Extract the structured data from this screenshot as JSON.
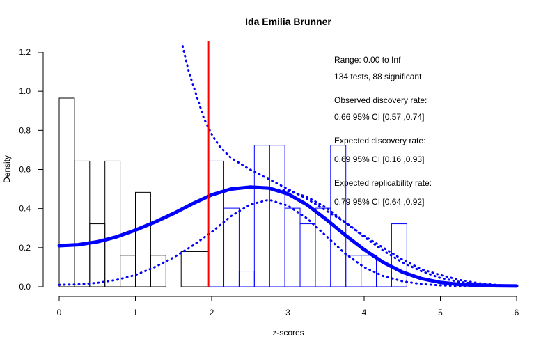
{
  "chart_data": {
    "type": "histogram",
    "title": "Ida Emilia Brunner",
    "xlabel": "z-scores",
    "ylabel": "Density",
    "xlim": [
      0,
      6
    ],
    "ylim": [
      0,
      1.2
    ],
    "x_ticks": [
      "0",
      "1",
      "2",
      "3",
      "4",
      "5",
      "6"
    ],
    "y_ticks": [
      "0.0",
      "0.2",
      "0.4",
      "0.6",
      "0.8",
      "1.0",
      "1.2"
    ],
    "threshold": {
      "x": 1.96,
      "color": "#ff0000"
    },
    "bin_width": 0.2,
    "bars_below_threshold": [
      {
        "x0": 0.0,
        "value": 0.965
      },
      {
        "x0": 0.2,
        "value": 0.643
      },
      {
        "x0": 0.4,
        "value": 0.322
      },
      {
        "x0": 0.6,
        "value": 0.643
      },
      {
        "x0": 0.8,
        "value": 0.161
      },
      {
        "x0": 1.0,
        "value": 0.483
      },
      {
        "x0": 1.2,
        "value": 0.161
      },
      {
        "x0": 1.6,
        "value": 0.18,
        "width": 0.36
      }
    ],
    "bars_above_threshold": [
      {
        "x0": 1.96,
        "value": 0.643
      },
      {
        "x0": 2.16,
        "value": 0.402
      },
      {
        "x0": 2.36,
        "value": 0.08
      },
      {
        "x0": 2.56,
        "value": 0.724
      },
      {
        "x0": 2.76,
        "value": 0.724
      },
      {
        "x0": 2.96,
        "value": 0.402
      },
      {
        "x0": 3.16,
        "value": 0.322
      },
      {
        "x0": 3.36,
        "value": 0.402
      },
      {
        "x0": 3.56,
        "value": 0.724
      },
      {
        "x0": 3.76,
        "value": 0.161
      },
      {
        "x0": 3.96,
        "value": 0.161
      },
      {
        "x0": 4.16,
        "value": 0.08
      },
      {
        "x0": 4.36,
        "value": 0.322
      }
    ],
    "series": [
      {
        "style": "solid",
        "x": [
          0,
          0.25,
          0.5,
          0.75,
          1.0,
          1.25,
          1.5,
          1.75,
          2.0,
          2.25,
          2.5,
          2.75,
          3.0,
          3.25,
          3.5,
          3.75,
          4.0,
          4.25,
          4.5,
          4.75,
          5.0,
          5.25,
          5.5,
          5.75,
          6.0
        ],
        "y": [
          0.21,
          0.215,
          0.23,
          0.255,
          0.29,
          0.33,
          0.375,
          0.425,
          0.47,
          0.5,
          0.51,
          0.505,
          0.475,
          0.42,
          0.345,
          0.265,
          0.19,
          0.125,
          0.075,
          0.042,
          0.022,
          0.012,
          0.007,
          0.005,
          0.004
        ]
      },
      {
        "style": "dotted",
        "x": [
          1.62,
          1.7,
          1.8,
          1.9,
          2.0,
          2.1,
          2.25,
          2.5,
          2.75,
          3.0,
          3.25,
          3.5,
          3.75,
          4.0,
          4.25,
          4.5,
          4.75,
          5.0,
          5.25,
          5.5,
          5.75,
          6.0
        ],
        "y": [
          1.23,
          1.1,
          0.98,
          0.86,
          0.78,
          0.72,
          0.66,
          0.6,
          0.55,
          0.5,
          0.45,
          0.39,
          0.33,
          0.26,
          0.2,
          0.14,
          0.09,
          0.06,
          0.035,
          0.018,
          0.009,
          0.004
        ]
      },
      {
        "style": "dotted",
        "x": [
          0,
          0.25,
          0.5,
          0.75,
          1.0,
          1.25,
          1.5,
          1.75,
          2.0,
          2.25,
          2.5,
          2.75,
          3.0,
          3.25,
          3.5,
          3.75,
          4.0,
          4.25,
          4.5,
          4.75,
          5.0,
          5.25,
          5.5,
          5.75,
          6.0
        ],
        "y": [
          0.01,
          0.012,
          0.02,
          0.035,
          0.06,
          0.1,
          0.15,
          0.21,
          0.28,
          0.36,
          0.42,
          0.445,
          0.415,
          0.35,
          0.26,
          0.17,
          0.1,
          0.055,
          0.028,
          0.014,
          0.007,
          0.004,
          0.003,
          0.002,
          0.002
        ]
      },
      {
        "style": "dotted",
        "x": [
          2.75,
          3.0,
          3.25,
          3.5,
          3.75,
          4.0,
          4.25,
          4.5,
          4.75,
          5.0,
          5.25,
          5.5,
          5.75,
          6.0
        ],
        "y": [
          0.505,
          0.49,
          0.46,
          0.405,
          0.33,
          0.255,
          0.185,
          0.125,
          0.08,
          0.045,
          0.025,
          0.013,
          0.007,
          0.004
        ]
      }
    ],
    "colors": {
      "bars_below": "#000000",
      "bars_above": "#0000ff",
      "curves": "#0000ff",
      "threshold": "#ff0000"
    },
    "annotations": [
      "Range: 0.00 to Inf",
      "134 tests, 88 significant",
      "Observed discovery rate:",
      "0.66  95% CI [0.57 ,0.74]",
      "Expected discovery rate:",
      "0.69  95% CI [0.16 ,0.93]",
      "Expected replicability rate:",
      "0.79  95% CI [0.64 ,0.92]"
    ]
  }
}
